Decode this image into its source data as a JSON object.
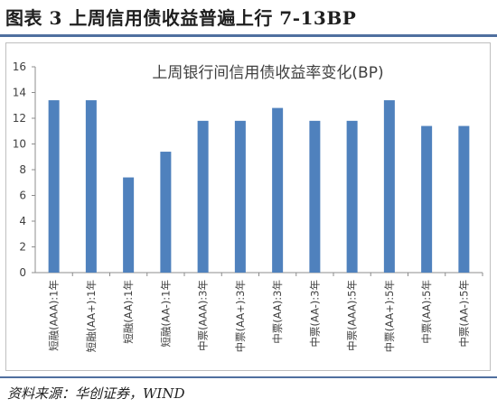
{
  "figure": {
    "title": "图表 3 上周信用债收益普遍上行 7-13BP",
    "source": "资料来源：华创证券，WIND"
  },
  "chart_data": {
    "type": "bar",
    "title": "上周银行间信用债收益率变化(BP)",
    "categories": [
      "短融(AAA):1年",
      "短融(AA+):1年",
      "短融(AA):1年",
      "短融(AA-):1年",
      "中票(AAA):3年",
      "中票(AA+):3年",
      "中票(AA):3年",
      "中票(AA-):3年",
      "中票(AAA):5年",
      "中票(AA+):5年",
      "中票(AA):5年",
      "中票(AA-):5年"
    ],
    "values": [
      13.4,
      13.4,
      7.4,
      9.4,
      11.8,
      11.8,
      12.8,
      11.8,
      11.8,
      13.4,
      11.4,
      11.4
    ],
    "ylim": [
      0,
      16
    ],
    "yticks": [
      0,
      2,
      4,
      6,
      8,
      10,
      12,
      14,
      16
    ],
    "xlabel": "",
    "ylabel": "",
    "grid": false,
    "bar_color": "#4f81bd"
  }
}
